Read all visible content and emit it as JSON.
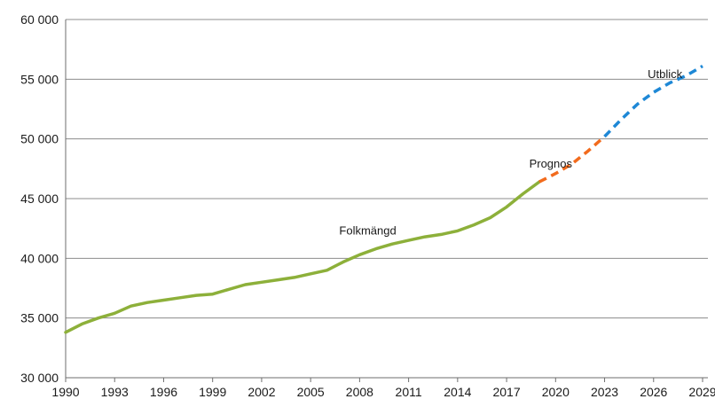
{
  "chart_data": {
    "type": "line",
    "title": "",
    "xlabel": "",
    "ylabel": "",
    "xlim": [
      1990,
      2029
    ],
    "ylim": [
      30000,
      60000
    ],
    "y_ticks": [
      30000,
      35000,
      40000,
      45000,
      50000,
      55000,
      60000
    ],
    "y_tick_labels": [
      "30 000",
      "35 000",
      "40 000",
      "45 000",
      "50 000",
      "55 000",
      "60 000"
    ],
    "x_ticks": [
      1990,
      1993,
      1996,
      1999,
      2002,
      2005,
      2008,
      2011,
      2014,
      2017,
      2020,
      2023,
      2026,
      2029
    ],
    "x_tick_labels": [
      "1990",
      "1993",
      "1996",
      "1999",
      "2002",
      "2005",
      "2008",
      "2011",
      "2014",
      "2017",
      "2020",
      "2023",
      "2026",
      "2029"
    ],
    "grid": "horizontal",
    "series": [
      {
        "name": "Folkmängd",
        "color": "#8db03a",
        "style": "solid",
        "x": [
          1990,
          1991,
          1992,
          1993,
          1994,
          1995,
          1996,
          1997,
          1998,
          1999,
          2000,
          2001,
          2002,
          2003,
          2004,
          2005,
          2006,
          2007,
          2008,
          2009,
          2010,
          2011,
          2012,
          2013,
          2014,
          2015,
          2016,
          2017,
          2018,
          2019
        ],
        "values": [
          33800,
          34500,
          35000,
          35400,
          36000,
          36300,
          36500,
          36700,
          36900,
          37000,
          37400,
          37800,
          38000,
          38200,
          38400,
          38700,
          39000,
          39700,
          40300,
          40800,
          41200,
          41500,
          41800,
          42000,
          42300,
          42800,
          43400,
          44300,
          45400,
          46400
        ]
      },
      {
        "name": "Prognos",
        "color": "#f26b1d",
        "style": "dashed",
        "x": [
          2019,
          2020,
          2021,
          2022,
          2023
        ],
        "values": [
          46400,
          47100,
          47900,
          49000,
          50200
        ]
      },
      {
        "name": "Utblick",
        "color": "#1e88d6",
        "style": "dashed",
        "x": [
          2023,
          2024,
          2025,
          2026,
          2027,
          2028,
          2029
        ],
        "values": [
          50200,
          51600,
          52900,
          53900,
          54700,
          55300,
          56100
        ]
      }
    ],
    "annotations": [
      {
        "text": "Folkmängd",
        "x": 2008.5,
        "y": 42000
      },
      {
        "text": "Prognos",
        "x": 2019.7,
        "y": 47600
      },
      {
        "text": "Utblick",
        "x": 2026.7,
        "y": 55100
      }
    ]
  }
}
